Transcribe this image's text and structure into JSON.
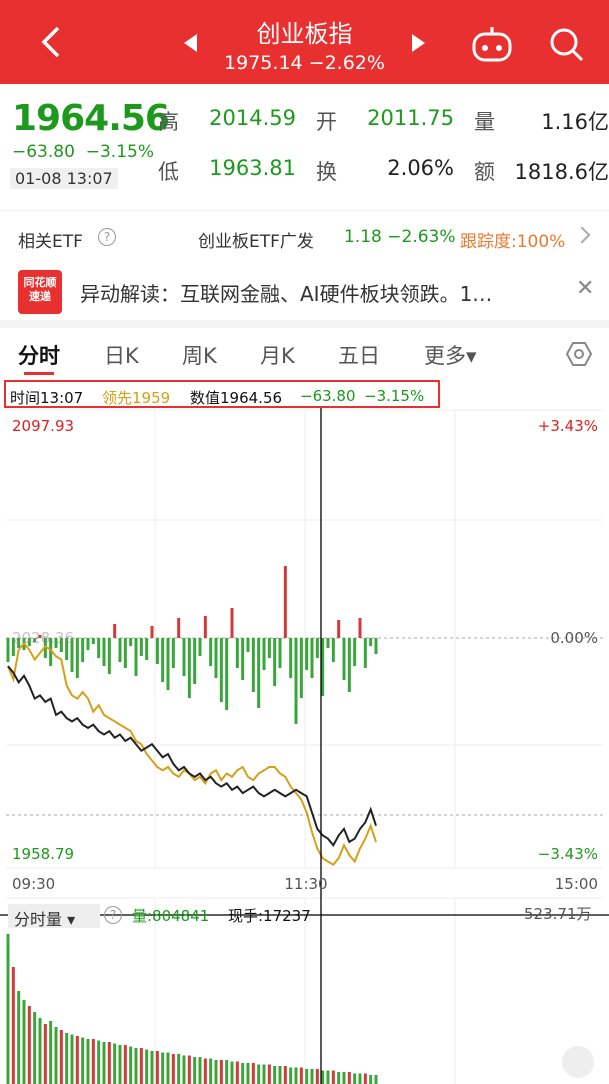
{
  "header": {
    "title": "创业板指",
    "subtitle": "1975.14 −2.62%"
  },
  "quote": {
    "price": "1964.56",
    "change": "−63.80",
    "change_pct": "−3.15%",
    "datetime": "01-08 13:07",
    "stats": [
      {
        "label": "高",
        "value": "2014.59",
        "color": "green"
      },
      {
        "label": "开",
        "value": "2011.75",
        "color": "green"
      },
      {
        "label": "量",
        "value": "1.16亿",
        "color": "black"
      },
      {
        "label": "低",
        "value": "1963.81",
        "color": "green"
      },
      {
        "label": "换",
        "value": "2.06%",
        "color": "black"
      },
      {
        "label": "额",
        "value": "1818.6亿",
        "color": "black"
      }
    ]
  },
  "etf": {
    "label": "相关ETF",
    "name": "创业板ETF广发",
    "quote": "1.18 −2.63%",
    "tracking": "跟踪度:100%"
  },
  "news": {
    "logo_top": "同花顺",
    "logo_bottom": "速递",
    "text": "异动解读：互联网金融、AI硬件板块领跌。1…"
  },
  "tabs": [
    "分时",
    "日K",
    "周K",
    "月K",
    "五日",
    "更多▾"
  ],
  "cursor_info": {
    "time": "时间13:07",
    "lead": "领先1959",
    "value": "数值1964.56",
    "change": "−63.80",
    "pct": "−3.15%"
  },
  "chart_data": {
    "type": "line",
    "y_max": "2097.93",
    "y_min": "1958.79",
    "pct_max": "+3.43%",
    "pct_mid": "0.00%",
    "pct_min": "−3.43%",
    "pct_ref": "2028.36",
    "x_labels": [
      "09:30",
      "11:30",
      "15:00"
    ],
    "price": [
      2022,
      2020,
      2017,
      2019,
      2016,
      2012,
      2013,
      2011,
      2012,
      2007,
      2008,
      2006,
      2005,
      2006,
      2004,
      2003,
      2004,
      2002,
      2001,
      2002,
      2000,
      2001,
      1999,
      2000,
      1998,
      1996,
      1997,
      1998,
      1996,
      1994,
      1995,
      1992,
      1990,
      1991,
      1989,
      1988,
      1989,
      1987,
      1988,
      1986,
      1985,
      1986,
      1984,
      1985,
      1983,
      1984,
      1985,
      1983,
      1982,
      1983,
      1984,
      1983,
      1982,
      1983,
      1984,
      1983,
      1982,
      1977,
      1972,
      1970,
      1969,
      1967,
      1970,
      1972,
      1968,
      1969,
      1972,
      1974,
      1978,
      1973
    ],
    "lead": [
      2022,
      2018,
      2027,
      2029,
      2027,
      2024,
      2026,
      2028,
      2027,
      2025,
      2024,
      2016,
      2013,
      2012,
      2014,
      2012,
      2008,
      2010,
      2007,
      2006,
      2005,
      2004,
      2003,
      2002,
      1999,
      1998,
      1995,
      1993,
      1991,
      1990,
      1991,
      1989,
      1988,
      1990,
      1989,
      1987,
      1988,
      1986,
      1989,
      1990,
      1987,
      1989,
      1988,
      1990,
      1991,
      1988,
      1987,
      1989,
      1990,
      1991,
      1991,
      1989,
      1988,
      1985,
      1983,
      1981,
      1977,
      1971,
      1966,
      1963,
      1962,
      1961,
      1963,
      1967,
      1964,
      1962,
      1966,
      1969,
      1973,
      1968
    ],
    "bars": [
      -24,
      -18,
      -10,
      -12,
      -8,
      -4,
      3,
      -20,
      -28,
      -10,
      -14,
      -22,
      -34,
      -40,
      -24,
      -12,
      -6,
      -20,
      -28,
      -36,
      14,
      -24,
      -30,
      -8,
      -38,
      -18,
      -22,
      12,
      -26,
      -44,
      -52,
      -30,
      20,
      -38,
      -60,
      -46,
      -18,
      22,
      -28,
      -40,
      -64,
      -72,
      30,
      -30,
      -42,
      -14,
      -54,
      -70,
      -32,
      -20,
      -48,
      -30,
      72,
      -40,
      -86,
      -60,
      -32,
      -40,
      -20,
      -58,
      -10,
      -24,
      18,
      -42,
      -54,
      -28,
      20,
      -30,
      -8,
      -16
    ],
    "volume": [
      100,
      78,
      62,
      56,
      52,
      48,
      44,
      40,
      42,
      38,
      36,
      34,
      33,
      32,
      31,
      30,
      30,
      29,
      28,
      28,
      27,
      26,
      26,
      25,
      24,
      24,
      23,
      22,
      22,
      21,
      21,
      20,
      20,
      19,
      19,
      18,
      18,
      17,
      17,
      16,
      16,
      16,
      15,
      15,
      14,
      14,
      14,
      13,
      13,
      13,
      12,
      12,
      12,
      11,
      11,
      11,
      10,
      10,
      10,
      9,
      9,
      9,
      8,
      8,
      8,
      7,
      7,
      7,
      6,
      6
    ]
  },
  "volume": {
    "label": "分时量 ▾",
    "vol": "量:804841",
    "hand": "现手:17237",
    "max": "523.71万"
  }
}
